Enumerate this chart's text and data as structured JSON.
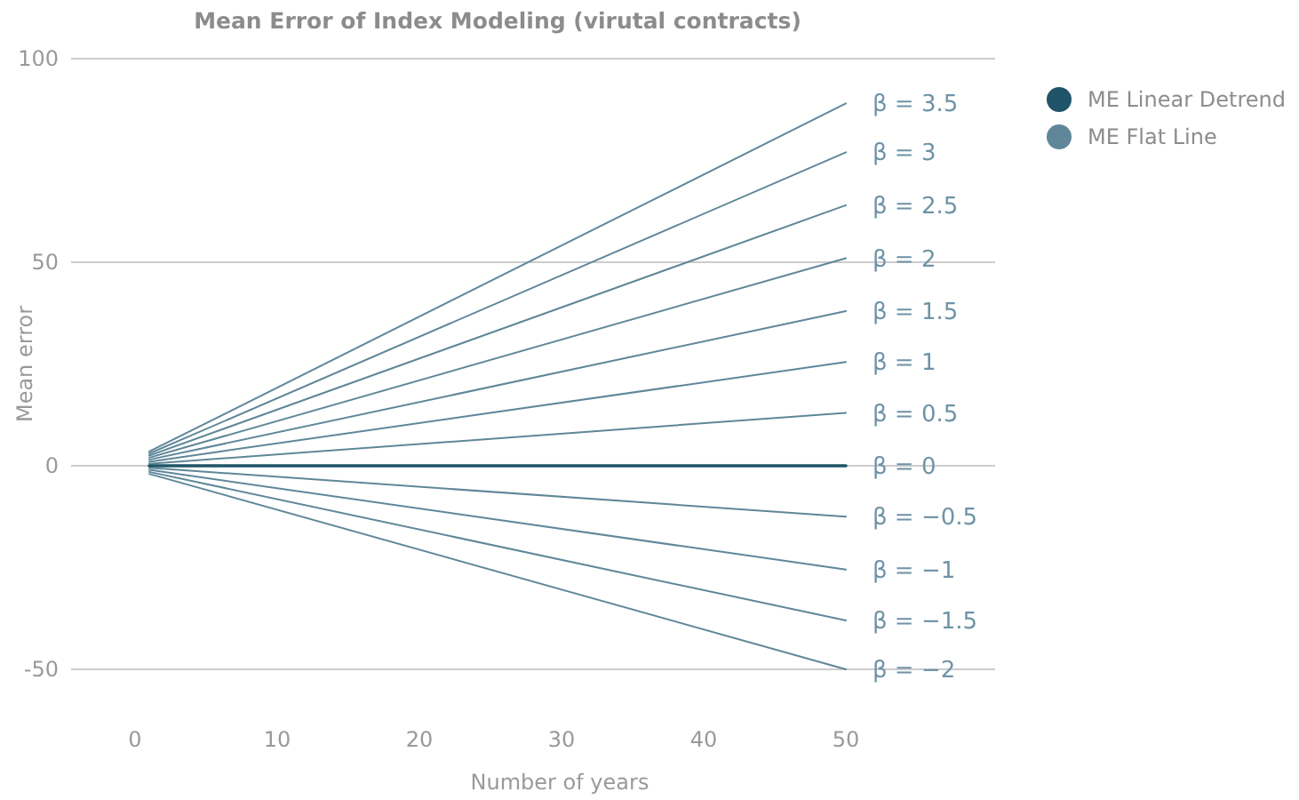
{
  "chart_data": {
    "type": "line",
    "title": "Mean Error of Index Modeling (virutal contracts)",
    "xlabel": "Number of years",
    "ylabel": "Mean error",
    "x": [
      1,
      50
    ],
    "xlim": [
      -4.5,
      60.5
    ],
    "ylim": [
      -50,
      100
    ],
    "xticks": [
      0,
      10,
      20,
      30,
      40,
      50
    ],
    "yticks": [
      -50,
      0,
      50,
      100
    ],
    "grid": "y",
    "legend": "top right",
    "marker": "none",
    "line_style": "solid",
    "series": [
      {
        "name": "ME Linear Detrend",
        "color": "#1f5468",
        "values": [
          0,
          0
        ]
      },
      {
        "name": "ME Flat Line",
        "color": "#5f8799",
        "values": [
          3.5,
          89
        ]
      },
      {
        "color": "#5f8799",
        "values": [
          3,
          77
        ]
      },
      {
        "color": "#5f8799",
        "values": [
          2.5,
          64
        ]
      },
      {
        "color": "#5f8799",
        "values": [
          2,
          51
        ]
      },
      {
        "color": "#5f8799",
        "values": [
          1.5,
          38
        ]
      },
      {
        "color": "#5f8799",
        "values": [
          1,
          25.5
        ]
      },
      {
        "color": "#5f8799",
        "values": [
          0.5,
          13
        ]
      },
      {
        "color": "#5f8799",
        "values": [
          -0.5,
          -12.5
        ]
      },
      {
        "color": "#5f8799",
        "values": [
          -1,
          -25.5
        ]
      },
      {
        "color": "#5f8799",
        "values": [
          -1.5,
          -38
        ]
      },
      {
        "color": "#5f8799",
        "values": [
          -2,
          -50
        ]
      }
    ],
    "annotations": [
      "β = 3.5",
      "β = 3",
      "β = 2.5",
      "β = 2",
      "β = 1.5",
      "β = 1",
      "β = 0.5",
      "β = 0",
      "β = −0.5",
      "β = −1",
      "β = −1.5",
      "β = −2"
    ]
  }
}
